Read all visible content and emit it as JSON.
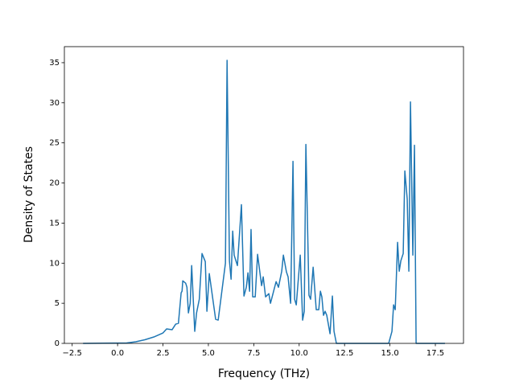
{
  "chart_data": {
    "type": "line",
    "xlabel": "Frequency (THz)",
    "ylabel": "Density of States",
    "color": "#1f77b4",
    "xlim": [
      -2.93,
      19.05
    ],
    "ylim": [
      0,
      37
    ],
    "xticks": [
      {
        "value": -2.5,
        "label": "−2.5"
      },
      {
        "value": 0,
        "label": "0.0"
      },
      2.5,
      {
        "value": 5,
        "label": "5.0"
      },
      7.5,
      {
        "value": 10,
        "label": "10.0"
      },
      12.5,
      {
        "value": 15,
        "label": "15.0"
      },
      17.5
    ],
    "yticks": [
      0,
      5,
      10,
      15,
      20,
      25,
      30,
      35
    ],
    "x": [
      -1.9,
      0.5,
      1.0,
      1.5,
      2.0,
      2.5,
      2.7,
      3.0,
      3.2,
      3.35,
      3.5,
      3.55,
      3.59,
      3.75,
      3.82,
      3.9,
      4.0,
      4.08,
      4.25,
      4.35,
      4.5,
      4.65,
      4.83,
      4.92,
      5.05,
      5.4,
      5.54,
      5.94,
      6.03,
      6.16,
      6.25,
      6.34,
      6.42,
      6.6,
      6.82,
      6.96,
      7.09,
      7.18,
      7.27,
      7.35,
      7.44,
      7.58,
      7.71,
      7.93,
      8.02,
      8.15,
      8.33,
      8.42,
      8.73,
      8.86,
      9.04,
      9.13,
      9.3,
      9.39,
      9.53,
      9.66,
      9.75,
      9.84,
      10.06,
      10.19,
      10.28,
      10.37,
      10.54,
      10.63,
      10.77,
      10.94,
      11.08,
      11.17,
      11.25,
      11.34,
      11.43,
      11.52,
      11.7,
      11.83,
      11.92,
      12.05,
      14.93,
      15.11,
      15.2,
      15.29,
      15.42,
      15.51,
      15.6,
      15.73,
      15.82,
      15.95,
      16.04,
      16.13,
      16.26,
      16.35,
      16.44,
      18.03
    ],
    "values": [
      0,
      0.05,
      0.2,
      0.45,
      0.8,
      1.3,
      1.8,
      1.7,
      2.4,
      2.5,
      6.3,
      6.5,
      7.8,
      7.5,
      7,
      3.8,
      5,
      9.7,
      1.5,
      3.8,
      5.5,
      11.2,
      10.2,
      4,
      8.7,
      3,
      2.9,
      10,
      35.3,
      10.3,
      8,
      14,
      11,
      9.7,
      17.3,
      5.9,
      7,
      8.8,
      6.5,
      14.2,
      5.8,
      5.8,
      11.1,
      7.2,
      8.3,
      5.8,
      6.2,
      5,
      7.7,
      7,
      9,
      11,
      8.9,
      8.3,
      5,
      22.7,
      5.5,
      4.8,
      11,
      2.9,
      4,
      24.8,
      6,
      5.5,
      9.5,
      4.2,
      4.2,
      6.5,
      5.8,
      3.5,
      4,
      3.5,
      1.2,
      5.9,
      1.5,
      0,
      0,
      1.5,
      4.8,
      4.2,
      12.6,
      9,
      10.3,
      11.2,
      21.5,
      18,
      9,
      30.1,
      11,
      24.7,
      0,
      0
    ]
  }
}
